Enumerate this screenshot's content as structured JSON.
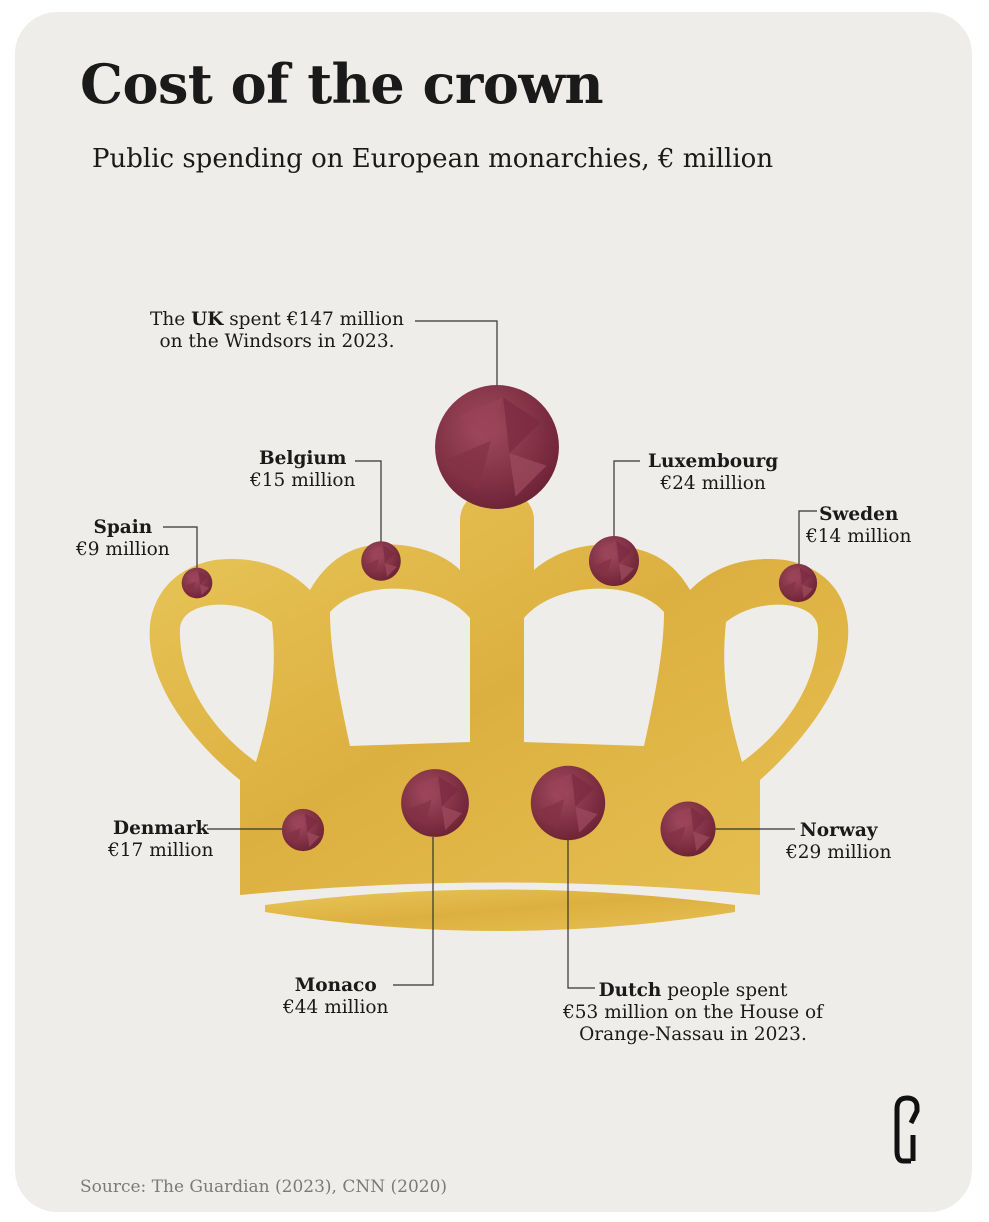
{
  "title": "Cost of the crown",
  "subtitle": "Public spending on European monarchies, € million",
  "source": "Source: The Guardian (2023), CNN (2020)",
  "colors": {
    "background": "#efede9",
    "gold": "#e2b94a",
    "gem": "#8a3448",
    "text": "#1a1a1a"
  },
  "chart_data": {
    "type": "pictorial",
    "title": "Cost of the crown",
    "subtitle": "Public spending on European monarchies, € million",
    "unit": "€ million",
    "categories": [
      "UK",
      "Belgium",
      "Luxembourg",
      "Spain",
      "Sweden",
      "Denmark",
      "Monaco",
      "Netherlands",
      "Norway"
    ],
    "values": [
      147,
      15,
      24,
      9,
      14,
      17,
      44,
      53,
      29
    ]
  },
  "labels": {
    "uk": {
      "bold": "UK",
      "pre": "The ",
      "post": " spent €147 million",
      "line2": "on the Windsors in 2023."
    },
    "belgium": {
      "name": "Belgium",
      "value": "€15 million"
    },
    "luxembourg": {
      "name": "Luxembourg",
      "value": "€24 million"
    },
    "spain": {
      "name": "Spain",
      "value": "€9 million"
    },
    "sweden": {
      "name": "Sweden",
      "value": "€14 million"
    },
    "denmark": {
      "name": "Denmark",
      "value": "€17 million"
    },
    "monaco": {
      "name": "Monaco",
      "value": "€44 million"
    },
    "norway": {
      "name": "Norway",
      "value": "€29 million"
    },
    "dutch": {
      "bold": "Dutch",
      "post": " people spent",
      "line2": "€53 million on the House of",
      "line3": "Orange-Nassau in 2023."
    }
  }
}
